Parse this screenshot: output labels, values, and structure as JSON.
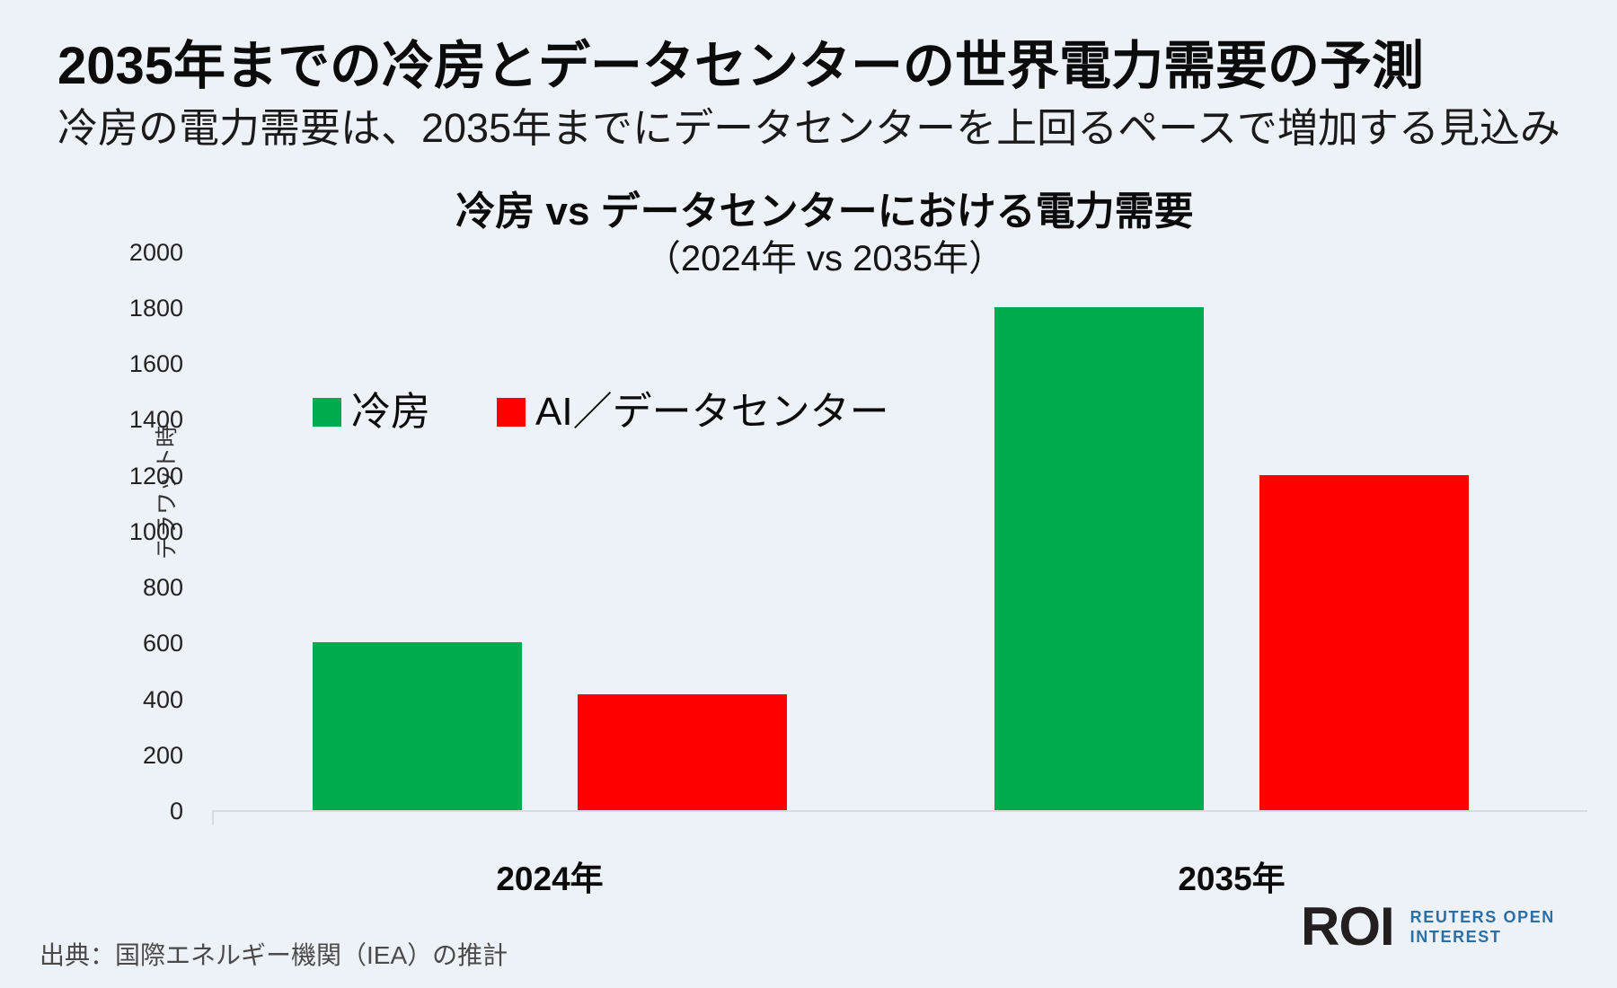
{
  "page": {
    "background": "#edf2f8"
  },
  "header": {
    "title": "2035年までの冷房とデータセンターの世界電力需要の予測",
    "subtitle": "冷房の電力需要は、2035年までにデータセンターを上回るペースで増加する見込み"
  },
  "chart_data": {
    "type": "bar",
    "title": "冷房 vs データセンターにおける電力需要",
    "subtitle": "（2024年 vs 2035年）",
    "ylabel": "テラワット時",
    "categories": [
      "2024年",
      "2035年"
    ],
    "series": [
      {
        "name": "冷房",
        "color": "#00ab4e",
        "values": [
          600,
          1800
        ]
      },
      {
        "name": "AI／データセンター",
        "color": "#fe0000",
        "values": [
          415,
          1200
        ]
      }
    ],
    "ylim": [
      0,
      2000
    ],
    "ytick_step": 200,
    "yticks": [
      0,
      200,
      400,
      600,
      800,
      1000,
      1200,
      1400,
      1600,
      1800,
      2000
    ],
    "grid": false,
    "legend_position": "inside-upper-left",
    "axis_color": "#d7dce1"
  },
  "footer": {
    "source": "出典：国際エネルギー機関（IEA）の推計",
    "logo": {
      "abbr": "ROI",
      "line1": "REUTERS OPEN",
      "line2": "INTEREST",
      "abbr_color": "#231f20",
      "text_color": "#2a6fa5"
    }
  }
}
